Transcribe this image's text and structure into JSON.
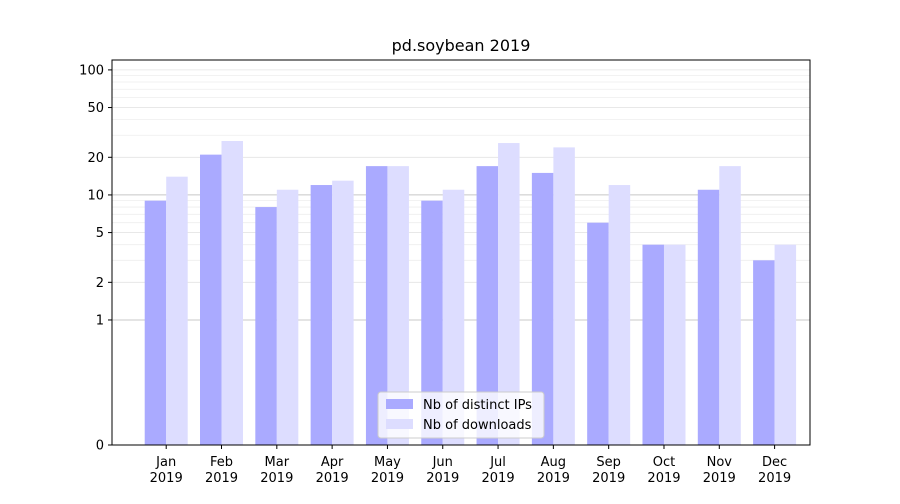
{
  "chart_data": {
    "type": "bar",
    "title": "pd.soybean 2019",
    "xlabel": "",
    "ylabel": "",
    "yscale": "symlog",
    "ylim": [
      0,
      120
    ],
    "yticks": [
      0,
      1,
      2,
      5,
      10,
      20,
      50,
      100
    ],
    "ytick_labels": [
      "0",
      "1",
      "2",
      "5",
      "10",
      "20",
      "50",
      "100"
    ],
    "grid": true,
    "legend_position": "bottom-center",
    "categories": [
      "Jan\n2019",
      "Feb\n2019",
      "Mar\n2019",
      "Apr\n2019",
      "May\n2019",
      "Jun\n2019",
      "Jul\n2019",
      "Aug\n2019",
      "Sep\n2019",
      "Oct\n2019",
      "Nov\n2019",
      "Dec\n2019"
    ],
    "series": [
      {
        "name": "Nb of distinct IPs",
        "color": "#aaaaff",
        "values": [
          9,
          21,
          8,
          12,
          17,
          9,
          17,
          15,
          6,
          4,
          11,
          3
        ]
      },
      {
        "name": "Nb of downloads",
        "color": "#ddddff",
        "values": [
          14,
          27,
          11,
          13,
          17,
          11,
          26,
          24,
          12,
          4,
          17,
          4
        ]
      }
    ]
  }
}
